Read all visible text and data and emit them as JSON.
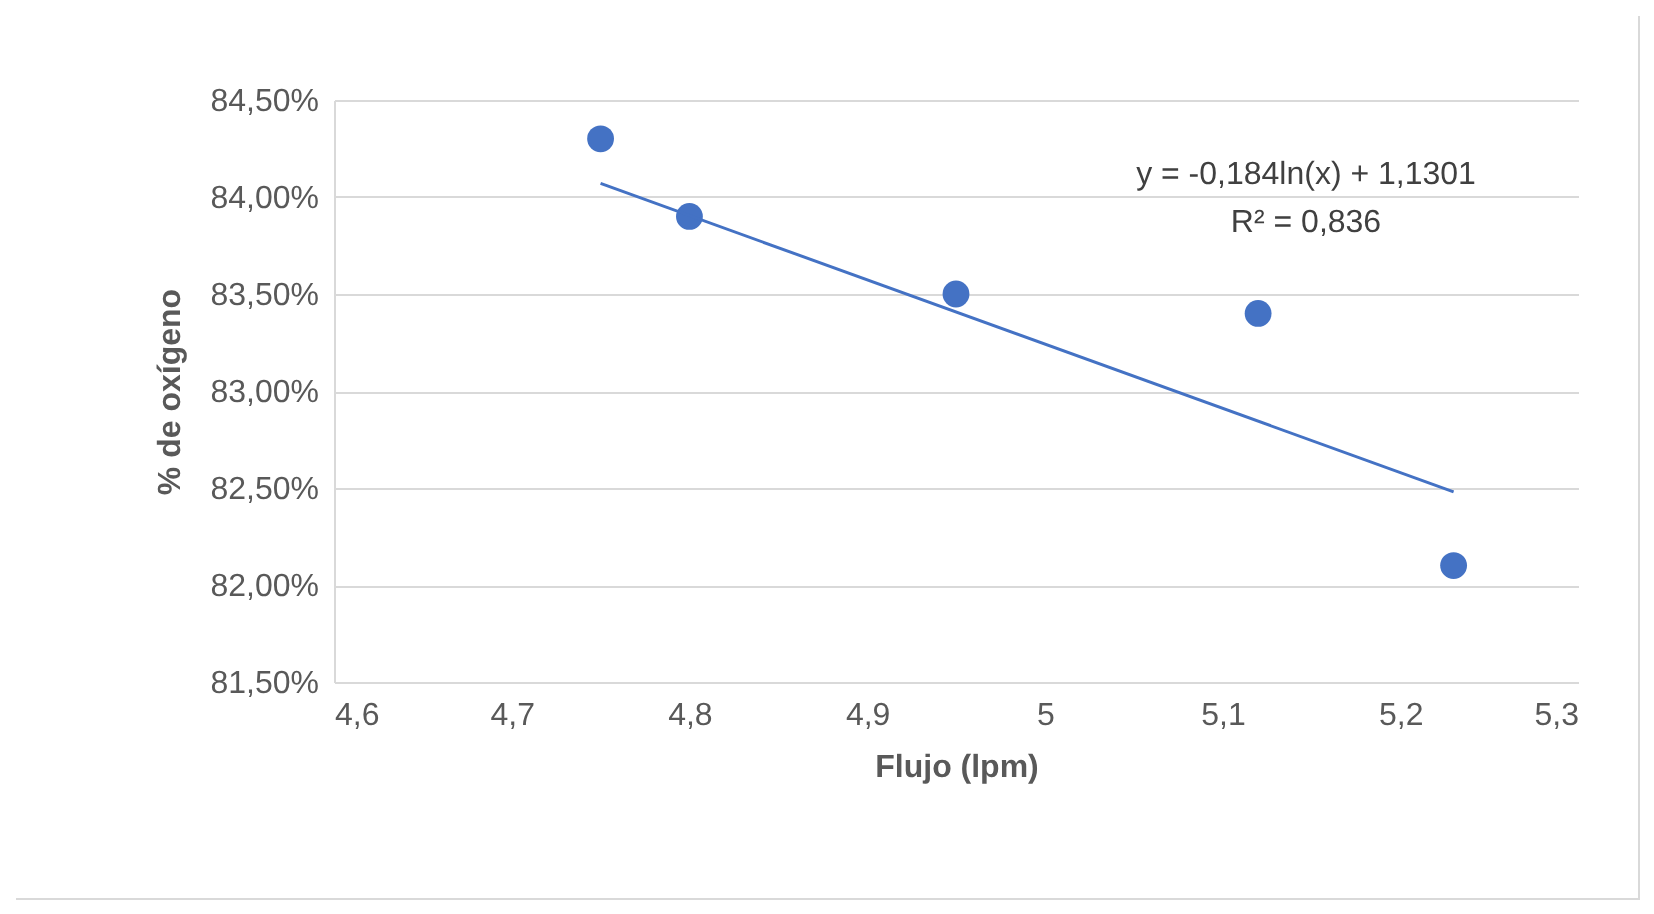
{
  "chart_data": {
    "type": "scatter",
    "xlabel": "Flujo (lpm)",
    "ylabel": "% de oxígeno",
    "xlim": [
      4.6,
      5.3
    ],
    "xticks": [
      {
        "value": 4.6,
        "label": "4,6"
      },
      {
        "value": 4.7,
        "label": "4,7"
      },
      {
        "value": 4.8,
        "label": "4,8"
      },
      {
        "value": 4.9,
        "label": "4,9"
      },
      5,
      {
        "value": 5.1,
        "label": "5,1"
      },
      {
        "value": 5.2,
        "label": "5,2"
      },
      {
        "value": 5.3,
        "label": "5,3"
      }
    ],
    "ylim": [
      81.5,
      84.5
    ],
    "yticks": [
      {
        "value": 81.5,
        "label": "81,50%"
      },
      {
        "value": 82,
        "label": "82,00%"
      },
      {
        "value": 82.5,
        "label": "82,50%"
      },
      {
        "value": 83,
        "label": "83,00%"
      },
      {
        "value": 83.5,
        "label": "83,50%"
      },
      {
        "value": 84,
        "label": "84,00%"
      },
      {
        "value": 84.5,
        "label": "84,50%"
      }
    ],
    "grid": "y",
    "marker": "circle",
    "series": [
      {
        "color": "#4472c4",
        "x": [
          4.75,
          4.8,
          4.95,
          5.12,
          5.23
        ],
        "values": [
          84.3,
          83.9,
          83.5,
          83.4,
          82.1
        ]
      },
      {
        "type": "line",
        "color": "#4472c4",
        "x": [
          4.75,
          5.23
        ],
        "values": [
          84.07,
          82.48
        ],
        "line_style": "solid",
        "marker": "none"
      }
    ],
    "annotations": [
      "y = -0,184ln(x) + 1,1301",
      "R² = 0,836"
    ]
  }
}
